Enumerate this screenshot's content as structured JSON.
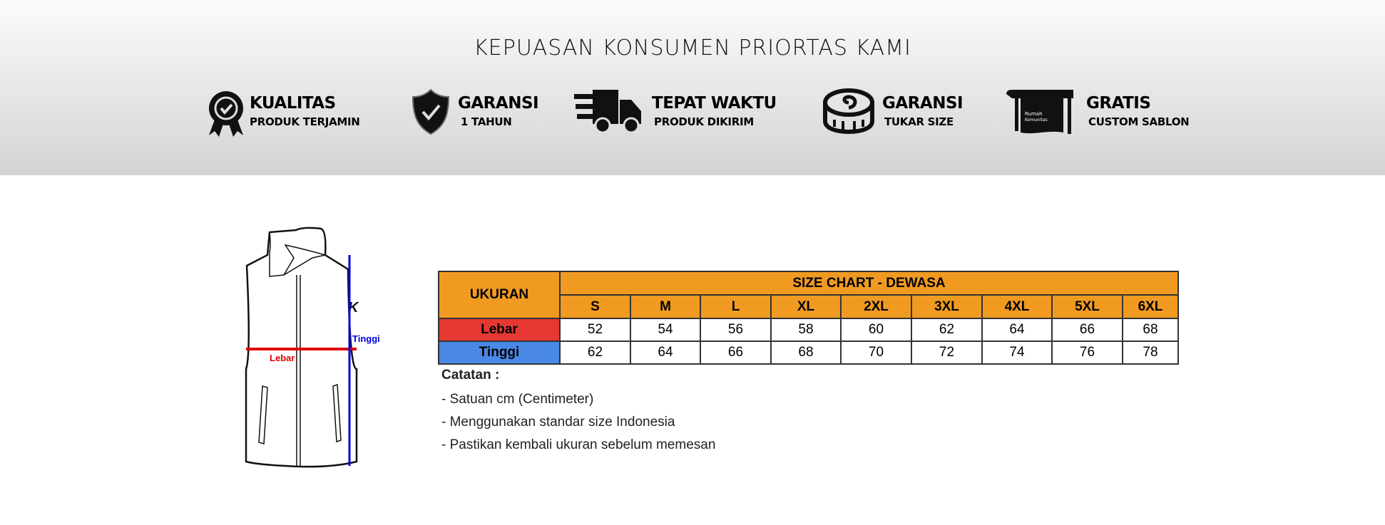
{
  "header": {
    "title": "KEPUASAN KONSUMEN PRIORTAS KAMI",
    "features": [
      {
        "icon": "quality-badge-icon",
        "title": "KUALITAS",
        "subtitle": "PRODUK TERJAMIN"
      },
      {
        "icon": "shield-check-icon",
        "title": "GARANSI",
        "subtitle": "1 TAHUN"
      },
      {
        "icon": "delivery-truck-icon",
        "title": "TEPAT WAKTU",
        "subtitle": "PRODUK DIKIRIM"
      },
      {
        "icon": "measuring-tape-icon",
        "title": "GARANSI",
        "subtitle": "TUKAR SIZE"
      },
      {
        "icon": "printer-icon",
        "title": "GRATIS",
        "subtitle": "CUSTOM SABLON",
        "logo_text": "Rumah Komunitas"
      }
    ]
  },
  "diagram": {
    "width_label": "Lebar",
    "height_label": "Tinggi",
    "width_color": "#e00000",
    "height_color": "#0000dd"
  },
  "size_chart": {
    "header_label": "UKURAN",
    "title": "SIZE CHART - DEWASA",
    "sizes": [
      "S",
      "M",
      "L",
      "XL",
      "2XL",
      "3XL",
      "4XL",
      "5XL",
      "6XL"
    ],
    "rows": [
      {
        "label": "Lebar",
        "color": "#e53832",
        "values": [
          "52",
          "54",
          "56",
          "58",
          "60",
          "62",
          "64",
          "66",
          "68"
        ]
      },
      {
        "label": "Tinggi",
        "color": "#4a88e6",
        "values": [
          "62",
          "64",
          "66",
          "68",
          "70",
          "72",
          "74",
          "76",
          "78"
        ]
      }
    ],
    "header_color": "#f09a22"
  },
  "notes": {
    "heading": "Catatan :",
    "items": [
      "- Satuan cm (Centimeter)",
      "- Menggunakan standar size Indonesia",
      "- Pastikan kembali ukuran sebelum memesan"
    ]
  }
}
